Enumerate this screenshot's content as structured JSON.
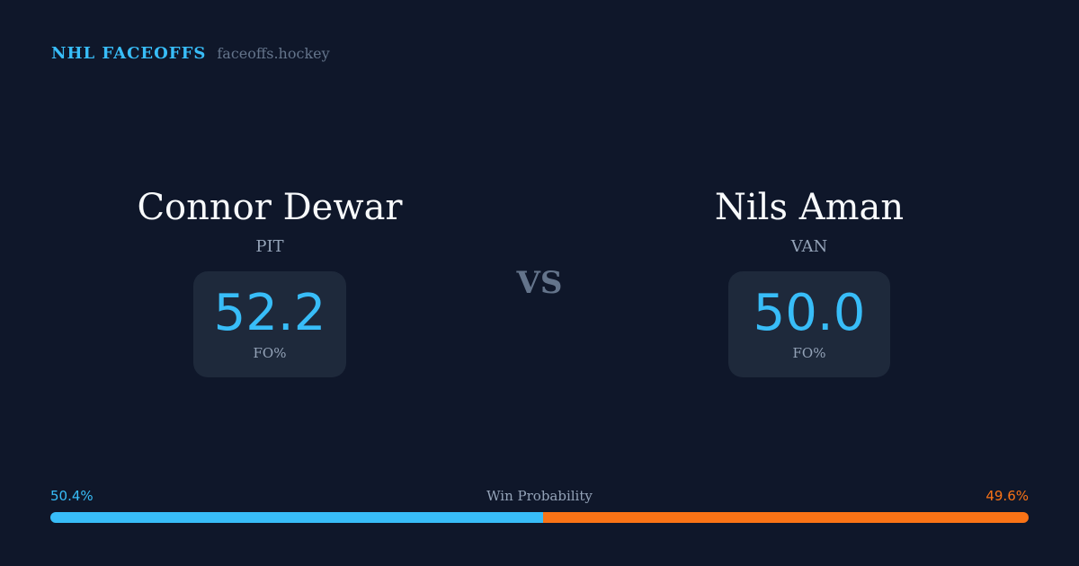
{
  "brand": {
    "title": "NHL FACEOFFS",
    "site": "faceoffs.hockey"
  },
  "players": [
    {
      "name": "Connor Dewar",
      "team": "PIT",
      "fo_pct": "52.2",
      "fo_label": "FO%"
    },
    {
      "name": "Nils Aman",
      "team": "VAN",
      "fo_pct": "50.0",
      "fo_label": "FO%"
    }
  ],
  "vs": "VS",
  "win_probability": {
    "label": "Win Probability",
    "left": "50.4%",
    "right": "49.6%",
    "left_value": 50.4,
    "right_value": 49.6,
    "left_color": "#38bdf8",
    "right_color": "#f97316"
  }
}
